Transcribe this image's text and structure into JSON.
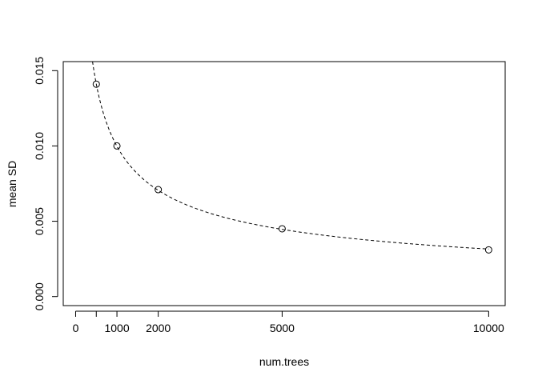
{
  "chart_data": {
    "type": "scatter",
    "title": "",
    "xlabel": "num.trees",
    "ylabel": "mean SD",
    "xlim": [
      -300,
      10400
    ],
    "ylim": [
      -0.0006,
      0.0156
    ],
    "grid": false,
    "box": true,
    "x_ticks": [
      0,
      500,
      1000,
      2000,
      5000,
      10000
    ],
    "x_tick_labels": [
      "0",
      "",
      "1000",
      "2000",
      "5000",
      "10000"
    ],
    "y_ticks": [
      0.0,
      0.005,
      0.01,
      0.015
    ],
    "y_tick_labels": [
      "0.000",
      "0.005",
      "0.010",
      "0.015"
    ],
    "series": [
      {
        "style": "open-circle",
        "x": [
          500,
          1000,
          2000,
          5000,
          10000
        ],
        "y": [
          0.0141,
          0.01,
          0.0071,
          0.0045,
          0.0031
        ]
      }
    ],
    "fit_curve": {
      "style": "dashed",
      "formula": "y = 0.3155 / sqrt(x)",
      "coefficient": 0.3155,
      "x_range": [
        400,
        10000
      ]
    }
  }
}
